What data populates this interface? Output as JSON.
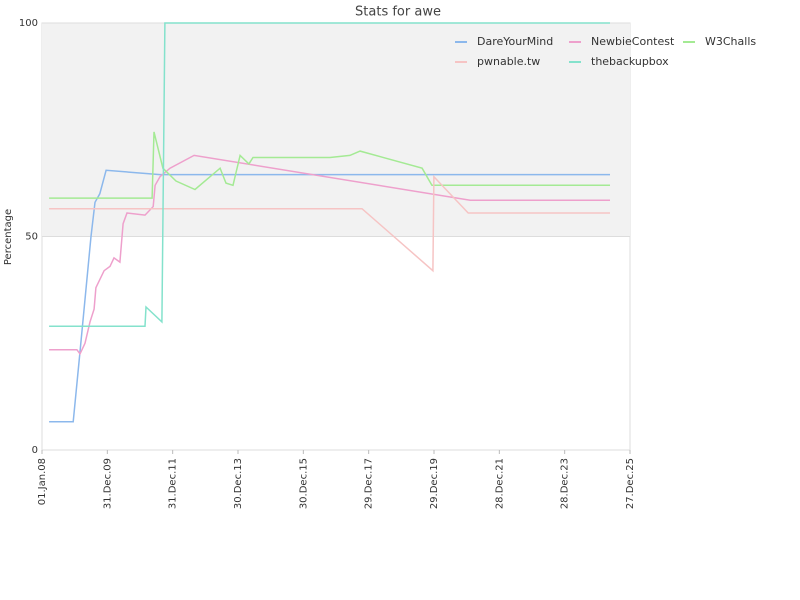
{
  "chart_data": {
    "type": "line",
    "title": "Stats for awe",
    "y_label": "Percentage",
    "xlim": [
      "2008-01-01",
      "2025-12-27"
    ],
    "xticks": [
      {
        "value": "2008-01-01",
        "label": "01.Jan.08"
      },
      {
        "value": "2009-12-31",
        "label": "31.Dec.09"
      },
      {
        "value": "2011-12-31",
        "label": "31.Dec.11"
      },
      {
        "value": "2013-12-30",
        "label": "30.Dec.13"
      },
      {
        "value": "2015-12-30",
        "label": "30.Dec.15"
      },
      {
        "value": "2017-12-29",
        "label": "29.Dec.17"
      },
      {
        "value": "2019-12-29",
        "label": "29.Dec.19"
      },
      {
        "value": "2021-12-28",
        "label": "28.Dec.21"
      },
      {
        "value": "2023-12-28",
        "label": "28.Dec.23"
      },
      {
        "value": "2025-12-27",
        "label": "27.Dec.25"
      }
    ],
    "ylim": [
      0,
      100
    ],
    "yticks": [
      0,
      50,
      100
    ],
    "grid": true,
    "legend": "top-right",
    "series": [
      {
        "name": "DareYourMind",
        "color": "#8cb8ec",
        "x": [
          "2008-03-20",
          "2008-12-15",
          "2009-03-01",
          "2009-07-01",
          "2009-08-15",
          "2009-10-08",
          "2009-12-17",
          "2011-08-12",
          "2025-05-18"
        ],
        "values": [
          6.6,
          6.6,
          23,
          50,
          58,
          60,
          65.5,
          64.5,
          64.5
        ]
      },
      {
        "name": "NewbieContest",
        "color": "#eea0cc",
        "x": [
          "2008-03-20",
          "2009-01-25",
          "2009-03-01",
          "2009-04-25",
          "2009-06-20",
          "2009-08-05",
          "2009-08-25",
          "2009-11-25",
          "2010-01-30",
          "2010-03-15",
          "2010-05-20",
          "2010-06-25",
          "2010-08-08",
          "2011-02-25",
          "2011-05-27",
          "2011-06-18",
          "2011-08-12",
          "2011-12-01",
          "2012-08-26",
          "2021-02-05",
          "2025-05-18"
        ],
        "values": [
          23.5,
          23.5,
          22.5,
          25,
          30,
          33,
          38,
          42,
          43,
          45,
          44,
          53,
          55.5,
          55,
          57,
          62,
          64,
          66,
          69,
          58.5,
          58.5
        ]
      },
      {
        "name": "W3Challs",
        "color": "#a4ea94",
        "x": [
          "2008-03-20",
          "2011-05-15",
          "2011-06-05",
          "2011-09-13",
          "2012-02-06",
          "2012-09-06",
          "2013-06-13",
          "2013-08-18",
          "2013-11-04",
          "2014-01-22",
          "2014-05-01",
          "2014-06-16",
          "2016-10-23",
          "2017-06-02",
          "2017-09-24",
          "2019-08-18",
          "2019-12-06",
          "2025-05-18"
        ],
        "values": [
          59,
          59,
          74.5,
          66,
          63,
          61,
          66,
          62.5,
          62,
          69,
          67,
          68.5,
          68.5,
          69,
          70,
          66,
          62,
          62
        ]
      },
      {
        "name": "pwnable.tw",
        "color": "#f6c4c4",
        "x": [
          "2008-03-20",
          "2017-10-16",
          "2019-12-17",
          "2019-12-28",
          "2021-01-14",
          "2025-05-18"
        ],
        "values": [
          56.5,
          56.5,
          42,
          64,
          55.5,
          55.5
        ]
      },
      {
        "name": "thebackupbox",
        "color": "#84e2cc",
        "x": [
          "2008-03-20",
          "2011-02-25",
          "2011-03-08",
          "2011-09-02",
          "2011-10-05",
          "2025-05-18"
        ],
        "values": [
          29,
          29,
          33.5,
          30,
          100,
          100
        ]
      }
    ]
  }
}
